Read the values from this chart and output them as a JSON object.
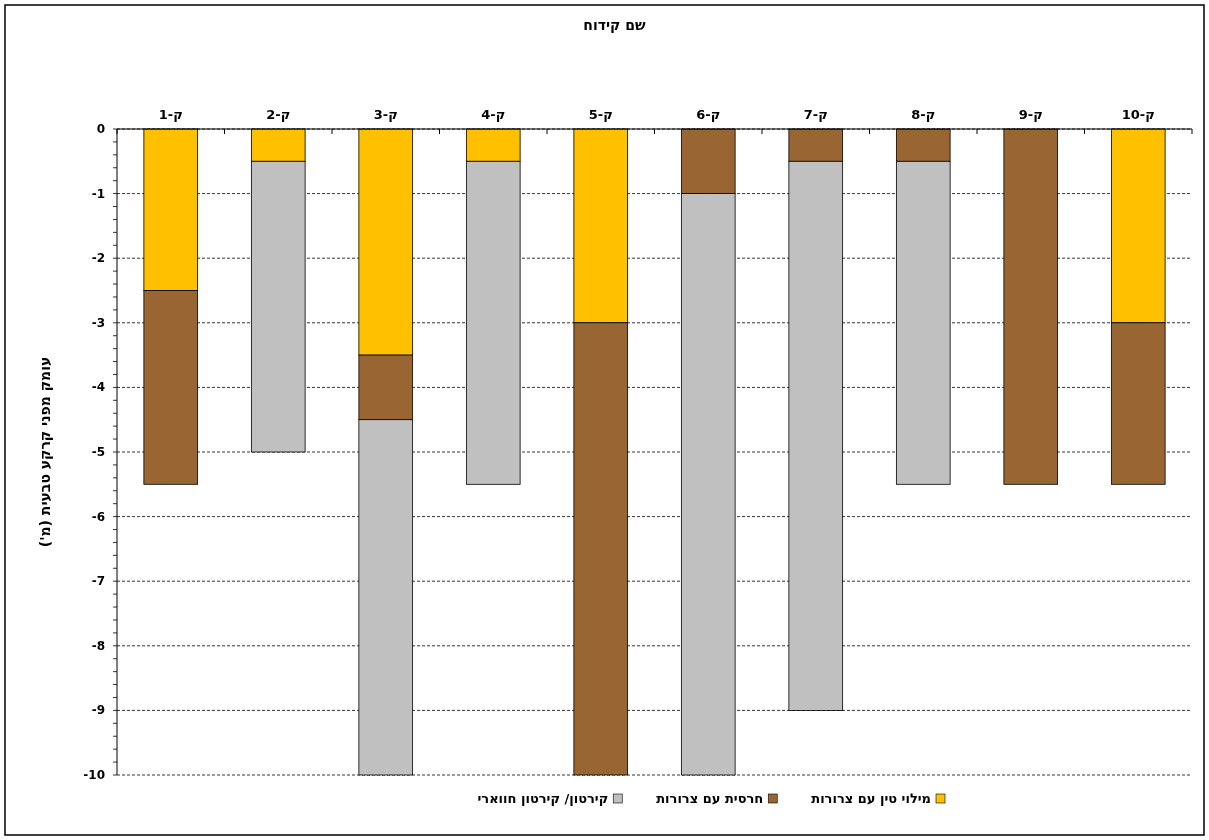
{
  "chart_data": {
    "type": "bar",
    "stacked": true,
    "title": "שם קידוח",
    "ylabel": "עומק מפני קרקע טבעית (מ')",
    "categories": [
      "ק-1",
      "ק-2",
      "ק-3",
      "ק-4",
      "ק-5",
      "ק-6",
      "ק-7",
      "ק-8",
      "ק-9",
      "ק-10"
    ],
    "series": [
      {
        "name": "מילוי טין עם צרורות",
        "color": "#ffc000",
        "values": [
          -2.5,
          -0.5,
          -3.5,
          -0.5,
          -3,
          null,
          null,
          null,
          null,
          -3
        ]
      },
      {
        "name": "חרסית עם צרורות",
        "color": "#996633",
        "values": [
          -3,
          null,
          -1,
          null,
          -7,
          -1,
          -0.5,
          -0.5,
          -5.5,
          -2.5
        ]
      },
      {
        "name": "קירטון/ קירטון חווארי",
        "color": "#c0c0c0",
        "values": [
          null,
          -4.5,
          -5.5,
          -5,
          null,
          -9,
          -8.5,
          -5,
          null,
          null
        ]
      }
    ],
    "ylim": [
      -10,
      0
    ],
    "yticks": [
      0,
      -1,
      -2,
      -3,
      -4,
      -5,
      -6,
      -7,
      -8,
      -9,
      -10
    ],
    "grid": "y",
    "legend": "bottom"
  }
}
